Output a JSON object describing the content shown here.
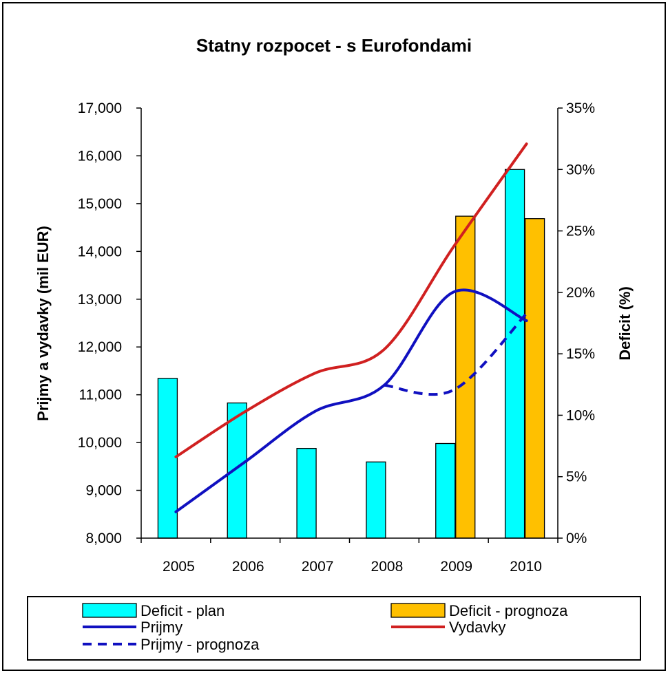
{
  "chart_data": {
    "type": "bar",
    "title": "Statny rozpocet - s Eurofondami",
    "categories": [
      "2005",
      "2006",
      "2007",
      "2008",
      "2009",
      "2010"
    ],
    "ylabel": "Prijmy a vydavky (mil EUR)",
    "y2label": "Deficit (%)",
    "ylim": [
      8000,
      17000
    ],
    "yticks": [
      8000,
      9000,
      10000,
      11000,
      12000,
      13000,
      14000,
      15000,
      16000,
      17000
    ],
    "ytick_labels": [
      "8,000",
      "9,000",
      "10,000",
      "11,000",
      "12,000",
      "13,000",
      "14,000",
      "15,000",
      "16,000",
      "17,000"
    ],
    "y2lim": [
      0,
      35
    ],
    "y2ticks": [
      0,
      5,
      10,
      15,
      20,
      25,
      30,
      35
    ],
    "y2tick_labels": [
      "0%",
      "5%",
      "10%",
      "15%",
      "20%",
      "25%",
      "30%",
      "35%"
    ],
    "grid": false,
    "legend_position": "bottom",
    "bar_series": [
      {
        "name": "Deficit - plan",
        "axis": "y2",
        "color": "#00FFFF",
        "values": [
          13,
          11,
          7.3,
          6.2,
          7.7,
          30
        ]
      },
      {
        "name": "Deficit - prognoza",
        "axis": "y2",
        "color": "#FFC000",
        "values": [
          null,
          null,
          null,
          null,
          26.2,
          26
        ]
      }
    ],
    "line_series": [
      {
        "name": "Prijmy",
        "axis": "y",
        "color": "#1010C0",
        "style": "solid",
        "values": [
          8550,
          9600,
          10650,
          11200,
          13150,
          12550
        ]
      },
      {
        "name": "Vydavky",
        "axis": "y",
        "color": "#D02020",
        "style": "solid",
        "values": [
          9700,
          10650,
          11450,
          11950,
          14100,
          16250
        ]
      },
      {
        "name": "Prijmy - prognoza",
        "axis": "y",
        "color": "#1010C0",
        "style": "dashed",
        "values": [
          null,
          null,
          null,
          11200,
          11100,
          12700
        ]
      }
    ],
    "legend": [
      {
        "label": "Deficit - plan",
        "kind": "bar",
        "color": "#00FFFF"
      },
      {
        "label": "Deficit - prognoza",
        "kind": "bar",
        "color": "#FFC000"
      },
      {
        "label": "Prijmy",
        "kind": "line",
        "color": "#1010C0"
      },
      {
        "label": "Vydavky",
        "kind": "line",
        "color": "#D02020"
      },
      {
        "label": "Prijmy - prognoza",
        "kind": "dashed",
        "color": "#1010C0"
      }
    ]
  }
}
